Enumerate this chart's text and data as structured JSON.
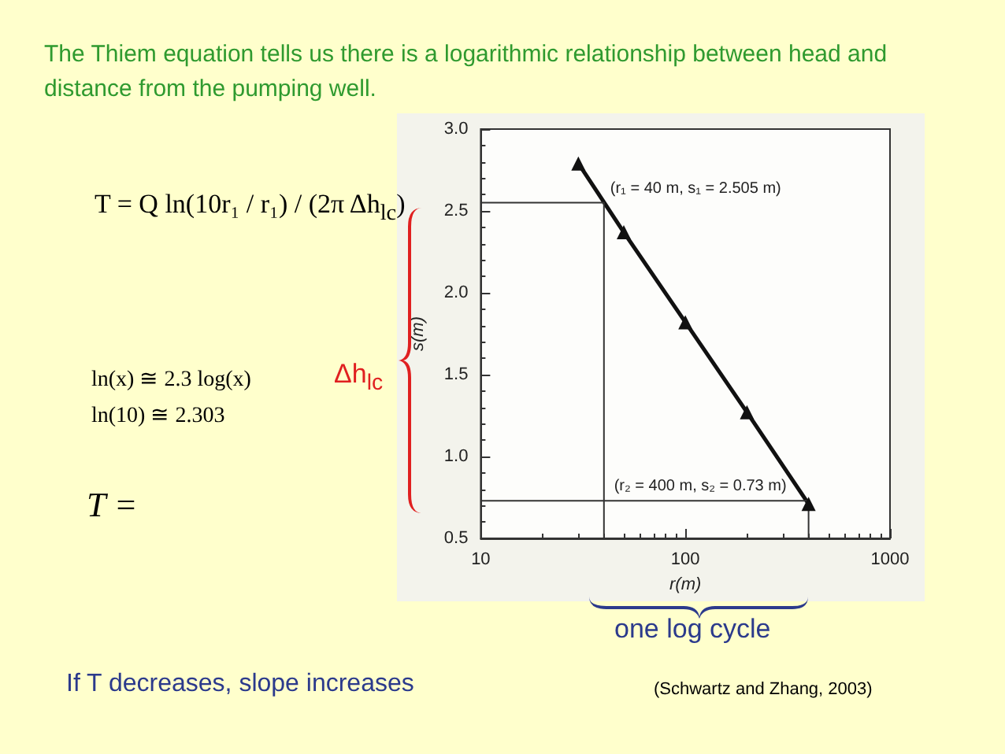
{
  "chart_data": {
    "type": "line",
    "title": "The Thiem equation tells us there is a logarithmic relationship between head and distance from the pumping well.",
    "xlabel": "r(m)",
    "ylabel": "s(m)",
    "log": "x",
    "grid": false,
    "xlim": [
      10,
      1000
    ],
    "xticks": [
      10,
      100,
      1000
    ],
    "ylim": [
      0.5,
      3.0
    ],
    "yticks": [
      0.5,
      {
        "value": 1,
        "label": "1.0"
      },
      1.5,
      {
        "value": 2,
        "label": "2.0"
      },
      2.5,
      {
        "value": 3,
        "label": "3.0"
      }
    ],
    "series": [
      {
        "color": "#111111",
        "marker": "triangle",
        "x": [
          30,
          50,
          100,
          200,
          400
        ],
        "values": [
          2.79,
          2.37,
          1.82,
          1.27,
          0.71
        ]
      },
      {
        "color": "#333333",
        "marker": "none",
        "x": [
          10,
          40,
          40
        ],
        "values": [
          2.55,
          2.55,
          0.5
        ]
      },
      {
        "color": "#333333",
        "marker": "none",
        "x": [
          10,
          400,
          400
        ],
        "values": [
          0.73,
          0.73,
          0.5
        ]
      }
    ],
    "annotations": [
      "T = Q ln(10r₁ / r₁) / (2π Δh$_{lc}$)",
      "ln(x) ≅ 2.3 log(x)",
      "ln(10) ≅ 2.303",
      "T =",
      "Δh$_{lc}$",
      "one log cycle",
      "If T decreases, slope increases",
      "(Schwartz and Zhang, 2003)",
      {
        "text": "(r₁ = 40 m, s₁ = 2.505 m)",
        "x": 40,
        "y": 2.55
      },
      {
        "text": "(r₂ = 400 m, s₂ = 0.73 m)",
        "x": 400,
        "y": 0.73
      }
    ]
  }
}
